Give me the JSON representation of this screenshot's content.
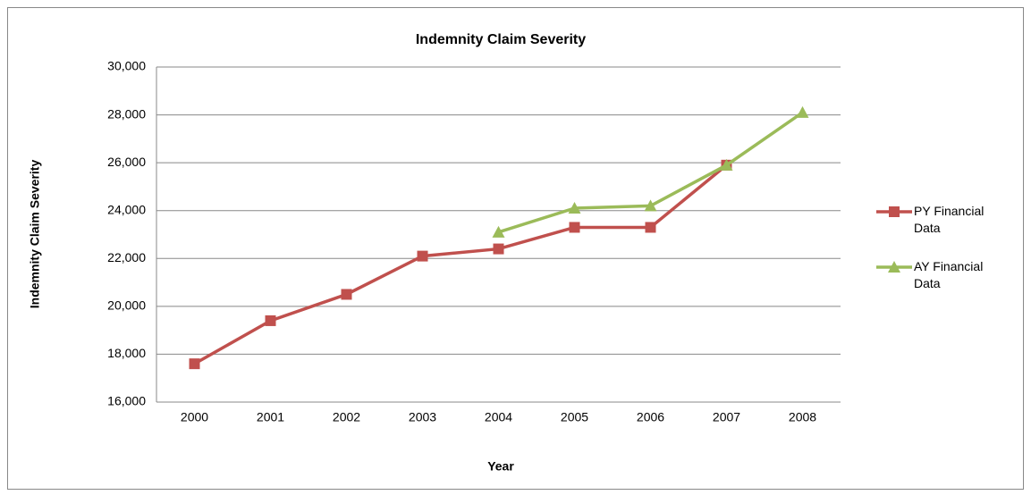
{
  "chart_data": {
    "type": "line",
    "title": "Indemnity Claim Severity",
    "x_label": "Year",
    "y_label": "Indemnity Claim Severity",
    "categories": [
      "2000",
      "2001",
      "2002",
      "2003",
      "2004",
      "2005",
      "2006",
      "2007",
      "2008"
    ],
    "series": [
      {
        "name": "PY Financial Data",
        "color": "#c0504d",
        "marker": "square",
        "values": [
          17600,
          19400,
          20500,
          22100,
          22400,
          23300,
          23300,
          25900,
          null
        ]
      },
      {
        "name": "AY Financial Data",
        "color": "#9bbb59",
        "marker": "triangle",
        "values": [
          null,
          null,
          null,
          null,
          23100,
          24100,
          24200,
          25900,
          28100
        ]
      }
    ],
    "ylim": [
      16000,
      30000
    ],
    "yticks": [
      {
        "value": 16000,
        "label": "16,000"
      },
      {
        "value": 18000,
        "label": "18,000"
      },
      {
        "value": 20000,
        "label": "20,000"
      },
      {
        "value": 22000,
        "label": "22,000"
      },
      {
        "value": 24000,
        "label": "24,000"
      },
      {
        "value": 26000,
        "label": "26,000"
      },
      {
        "value": 28000,
        "label": "28,000"
      },
      {
        "value": 30000,
        "label": "30,000"
      }
    ],
    "grid": true,
    "legend": "right"
  }
}
